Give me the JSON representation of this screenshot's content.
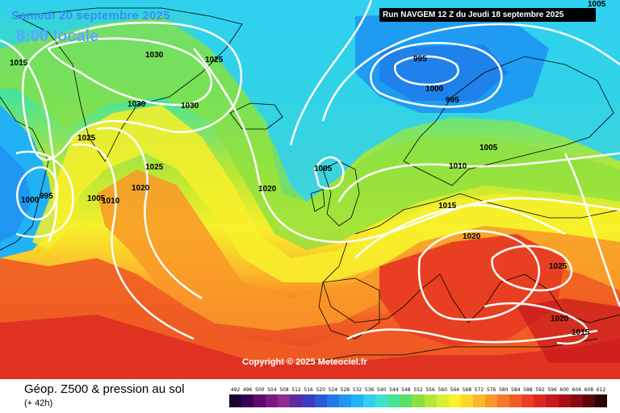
{
  "header": {
    "date": "Samedi 20 septembre 2025",
    "time": "8:00 locale",
    "run": "Run NAVGEM 12 Z du Jeudi 18 septembre 2025"
  },
  "copyright": "Copyright © 2025 Meteociel.fr",
  "legend": {
    "title": "Géop. Z500 & pression au sol",
    "subtitle": "(+ 42h)",
    "labels": [
      "492",
      "496",
      "500",
      "504",
      "508",
      "512",
      "516",
      "520",
      "524",
      "528",
      "532",
      "536",
      "540",
      "544",
      "548",
      "552",
      "556",
      "560",
      "564",
      "568",
      "572",
      "576",
      "580",
      "584",
      "588",
      "592",
      "596",
      "600",
      "604",
      "608",
      "612"
    ],
    "colors": [
      "#1c0033",
      "#3b0055",
      "#5c0a70",
      "#7a1a80",
      "#8f2a8f",
      "#5a2aa0",
      "#3b3bc0",
      "#2a5ad8",
      "#1f7ae8",
      "#1e96f2",
      "#21b2f5",
      "#2fd0f0",
      "#3fe2cf",
      "#47e29a",
      "#5ae066",
      "#8ae040",
      "#b6e636",
      "#dcee30",
      "#f7f02a",
      "#fcd62a",
      "#fbb82a",
      "#f99828",
      "#f57a26",
      "#f05c24",
      "#e83f22",
      "#dc2820",
      "#c8181c",
      "#a81016",
      "#880a12",
      "#5a050c",
      "#2a0206"
    ]
  },
  "isobars": [
    {
      "label": "1005",
      "pos": "top-right"
    },
    {
      "label": "1015",
      "pos": "greenland-west"
    },
    {
      "label": "1030",
      "pos": "greenland-north"
    },
    {
      "label": "1025",
      "pos": "greenland-east"
    },
    {
      "label": "995",
      "pos": "norwegian-sea"
    },
    {
      "label": "1000",
      "pos": "norwegian-sea-south"
    },
    {
      "label": "995",
      "pos": "scandinavia"
    },
    {
      "label": "1030",
      "pos": "greenland-south-a"
    },
    {
      "label": "1030",
      "pos": "greenland-south-b"
    },
    {
      "label": "1025",
      "pos": "atlantic-west"
    },
    {
      "label": "1025",
      "pos": "atlantic-mid"
    },
    {
      "label": "1020",
      "pos": "atlantic-center"
    },
    {
      "label": "1000",
      "pos": "labrador-a"
    },
    {
      "label": "995",
      "pos": "labrador-b"
    },
    {
      "label": "1005",
      "pos": "atlantic-c"
    },
    {
      "label": "1010",
      "pos": "atlantic-d"
    },
    {
      "label": "1020",
      "pos": "atlantic-east"
    },
    {
      "label": "1005",
      "pos": "north-sea"
    },
    {
      "label": "1010",
      "pos": "baltic"
    },
    {
      "label": "1005",
      "pos": "scandinavia-east"
    },
    {
      "label": "1015",
      "pos": "central-europe"
    },
    {
      "label": "1020",
      "pos": "alps"
    },
    {
      "label": "1025",
      "pos": "balkans"
    },
    {
      "label": "1020",
      "pos": "aegean"
    },
    {
      "label": "1015",
      "pos": "turkey"
    }
  ],
  "legend_colors_note": "gradient"
}
